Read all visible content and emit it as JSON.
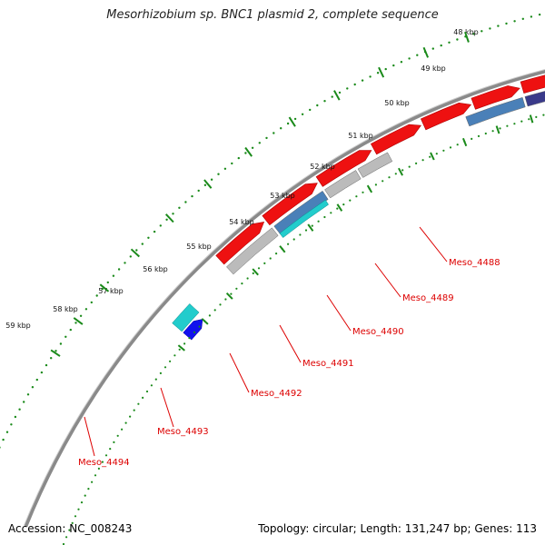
{
  "title": "Mesorhizobium sp. BNC1 plasmid 2, complete sequence",
  "footer": {
    "accession": "Accession: NC_008243",
    "summary": "Topology: circular; Length: 131,247 bp; Genes: 113"
  },
  "kbp_labels": [
    "48 kbp",
    "49 kbp",
    "50 kbp",
    "51 kbp",
    "52 kbp",
    "53 kbp",
    "54 kbp",
    "55 kbp",
    "56 kbp",
    "57 kbp",
    "58 kbp",
    "59 kbp"
  ],
  "gene_labels": [
    "Meso_4488",
    "Meso_4489",
    "Meso_4490",
    "Meso_4491",
    "Meso_4492",
    "Meso_4493",
    "Meso_4494"
  ],
  "colors": {
    "cds_red": "#ee1111",
    "backbone_gray": "#8a8a8a",
    "light_gray": "#bbbbbb",
    "steel_blue": "#4a80b8",
    "dark_indigo": "#3a3a8a",
    "cyan": "#22cccc",
    "blue": "#1111ee",
    "tick_green": "#1a8a1a",
    "label_red": "#dd0000"
  }
}
